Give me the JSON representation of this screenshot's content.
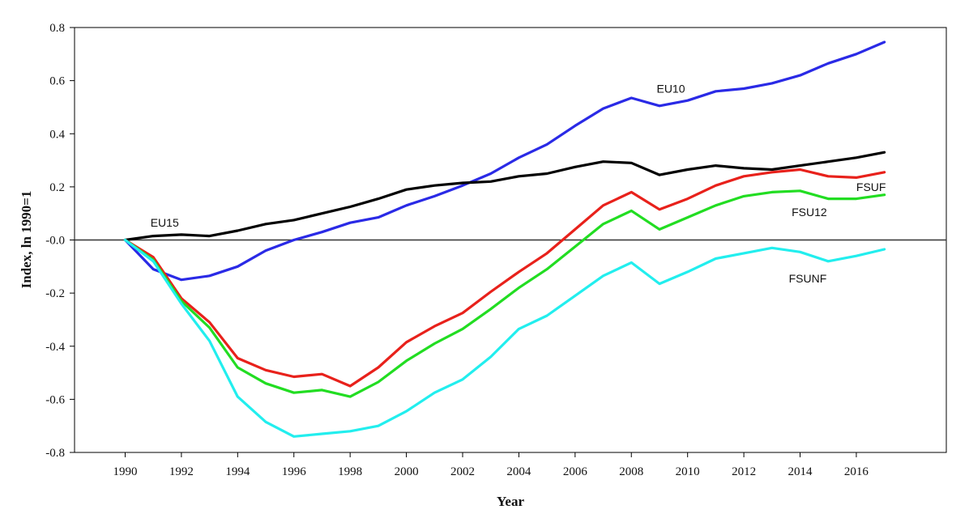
{
  "chart_data": {
    "type": "line",
    "xlabel": "Year",
    "ylabel": "Index, ln 1990=1",
    "xlim": [
      1988.2,
      2019.2
    ],
    "ylim": [
      -0.8,
      0.8
    ],
    "yticks": [
      0.8,
      0.6,
      0.4,
      0.2,
      0.0,
      -0.2,
      -0.4,
      -0.6,
      -0.8
    ],
    "ytick_labels": [
      "0.8",
      "0.6",
      "0.4",
      "0.2",
      "-0.0",
      "-0.2",
      "-0.4",
      "-0.6",
      "-0.8"
    ],
    "xticks": [
      1990,
      1992,
      1994,
      1996,
      1998,
      2000,
      2002,
      2004,
      2006,
      2008,
      2010,
      2012,
      2014,
      2016
    ],
    "xtick_labels": [
      "1990",
      "1992",
      "1994",
      "1996",
      "1998",
      "2000",
      "2002",
      "2004",
      "2006",
      "2008",
      "2010",
      "2012",
      "2014",
      "2016"
    ],
    "grid": false,
    "zero_line": true,
    "x": [
      1990,
      1991,
      1992,
      1993,
      1994,
      1995,
      1996,
      1997,
      1998,
      1999,
      2000,
      2001,
      2002,
      2003,
      2004,
      2005,
      2006,
      2007,
      2008,
      2009,
      2010,
      2011,
      2012,
      2013,
      2014,
      2015,
      2016,
      2017
    ],
    "series": [
      {
        "name": "EU10",
        "color": "#2a2ae6",
        "values": [
          0.0,
          -0.11,
          -0.15,
          -0.135,
          -0.1,
          -0.04,
          0.0,
          0.03,
          0.065,
          0.085,
          0.13,
          0.165,
          0.205,
          0.25,
          0.31,
          0.36,
          0.43,
          0.495,
          0.535,
          0.505,
          0.525,
          0.56,
          0.57,
          0.59,
          0.62,
          0.665,
          0.7,
          0.745
        ]
      },
      {
        "name": "EU15",
        "color": "#000000",
        "values": [
          0.0,
          0.015,
          0.02,
          0.015,
          0.035,
          0.06,
          0.075,
          0.1,
          0.125,
          0.155,
          0.19,
          0.205,
          0.215,
          0.22,
          0.24,
          0.25,
          0.275,
          0.295,
          0.29,
          0.245,
          0.265,
          0.28,
          0.27,
          0.265,
          0.28,
          0.295,
          0.31,
          0.33
        ]
      },
      {
        "name": "FSUF",
        "color": "#e8211b",
        "values": [
          0.0,
          -0.065,
          -0.22,
          -0.31,
          -0.445,
          -0.49,
          -0.515,
          -0.505,
          -0.55,
          -0.48,
          -0.385,
          -0.325,
          -0.275,
          -0.195,
          -0.12,
          -0.05,
          0.04,
          0.13,
          0.18,
          0.115,
          0.155,
          0.205,
          0.24,
          0.255,
          0.265,
          0.24,
          0.235,
          0.255
        ]
      },
      {
        "name": "FSU12",
        "color": "#22dd22",
        "values": [
          0.0,
          -0.075,
          -0.23,
          -0.33,
          -0.48,
          -0.54,
          -0.575,
          -0.565,
          -0.59,
          -0.535,
          -0.455,
          -0.39,
          -0.335,
          -0.26,
          -0.18,
          -0.11,
          -0.025,
          0.06,
          0.11,
          0.04,
          0.085,
          0.13,
          0.165,
          0.18,
          0.185,
          0.155,
          0.155,
          0.17
        ]
      },
      {
        "name": "FSUNF",
        "color": "#22eeee",
        "values": [
          0.0,
          -0.08,
          -0.24,
          -0.38,
          -0.59,
          -0.685,
          -0.74,
          -0.73,
          -0.72,
          -0.7,
          -0.645,
          -0.575,
          -0.525,
          -0.44,
          -0.335,
          -0.285,
          -0.21,
          -0.135,
          -0.085,
          -0.165,
          -0.12,
          -0.07,
          -0.05,
          -0.03,
          -0.045,
          -0.08,
          -0.06,
          -0.035
        ]
      }
    ],
    "annotations": [
      {
        "text": "EU10",
        "x": 2008.9,
        "y": 0.57
      },
      {
        "text": "EU15",
        "x": 1990.9,
        "y": 0.065
      },
      {
        "text": "FSUF",
        "x": 2016.0,
        "y": 0.2
      },
      {
        "text": "FSU12",
        "x": 2013.7,
        "y": 0.105
      },
      {
        "text": "FSUNF",
        "x": 2013.6,
        "y": -0.145
      }
    ]
  }
}
